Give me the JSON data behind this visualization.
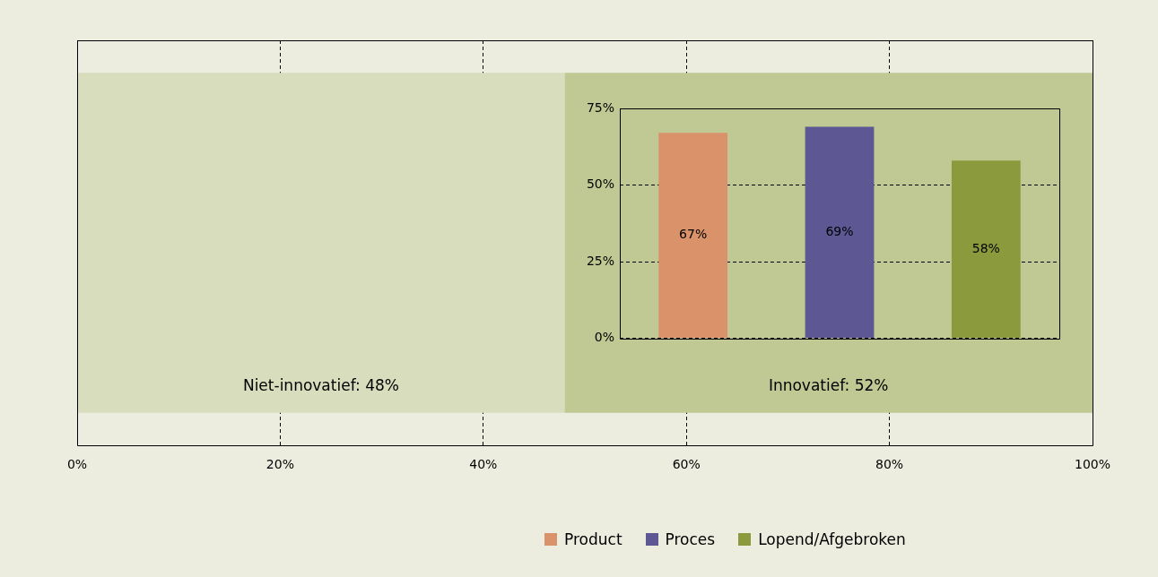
{
  "chart_data": [
    {
      "type": "bar",
      "orientation": "horizontal",
      "stacked": true,
      "categories": [
        null
      ],
      "series": [
        {
          "color": "#d8ddbd",
          "values": [
            48
          ],
          "value_labels": [
            "Niet-innovatief: 48%"
          ]
        },
        {
          "color": "#c0c993",
          "values": [
            52
          ],
          "value_labels": [
            "Innovatief: 52%"
          ]
        }
      ],
      "xlim": [
        0,
        100
      ],
      "xticks": [
        {
          "value": 0,
          "label": "0%"
        },
        {
          "value": 20,
          "label": "20%"
        },
        {
          "value": 40,
          "label": "40%"
        },
        {
          "value": 60,
          "label": "60%"
        },
        {
          "value": 80,
          "label": "80%"
        },
        {
          "value": 100,
          "label": "100%"
        }
      ],
      "grid": "x",
      "legend": false
    },
    {
      "type": "bar",
      "categories": [
        null,
        null,
        null
      ],
      "series": [
        {
          "name": "Product",
          "color": "#d9926a",
          "values": [
            67,
            null,
            null
          ],
          "value_labels": [
            "67%",
            null,
            null
          ]
        },
        {
          "name": "Proces",
          "color": "#5d5794",
          "values": [
            null,
            69,
            null
          ],
          "value_labels": [
            null,
            "69%",
            null
          ]
        },
        {
          "name": "Lopend/Afgebroken",
          "color": "#8b9a3c",
          "values": [
            null,
            null,
            58
          ],
          "value_labels": [
            null,
            null,
            "58%"
          ]
        }
      ],
      "ylim": [
        0,
        75
      ],
      "yticks": [
        {
          "value": 0,
          "label": "0%"
        },
        {
          "value": 25,
          "label": "25%"
        },
        {
          "value": 50,
          "label": "50%"
        },
        {
          "value": 75,
          "label": "75%"
        }
      ],
      "grid": "y",
      "legend": "bottom"
    }
  ]
}
